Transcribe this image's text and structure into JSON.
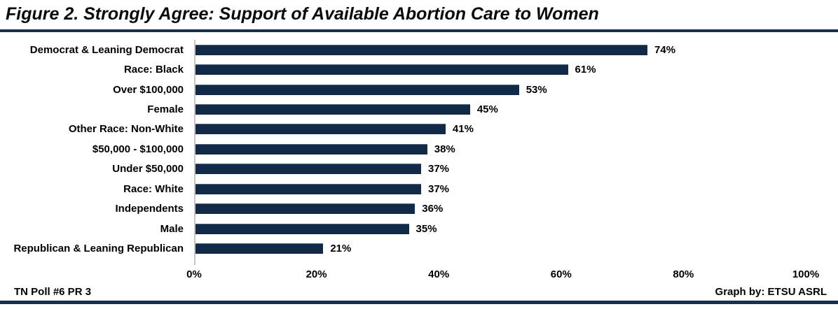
{
  "title": "Figure 2. Strongly Agree: Support of Available Abortion Care to Women",
  "footer": {
    "left": "TN Poll #6 PR 3",
    "right": "Graph by: ETSU ASRL"
  },
  "colors": {
    "bar": "#112a47",
    "rule": "#16304f",
    "axis_line": "#c6c6c6",
    "text": "#000000"
  },
  "chart_data": {
    "type": "bar",
    "orientation": "horizontal",
    "title": "Figure 2. Strongly Agree: Support of Available Abortion Care to Women",
    "categories": [
      "Democrat & Leaning Democrat",
      "Race: Black",
      "Over $100,000",
      "Female",
      "Other Race: Non-White",
      "$50,000 - $100,000",
      "Under $50,000",
      "Race: White",
      "Independents",
      "Male",
      "Republican & Leaning Republican"
    ],
    "values": [
      74,
      61,
      53,
      45,
      41,
      38,
      37,
      37,
      36,
      35,
      21
    ],
    "value_labels": [
      "74%",
      "61%",
      "53%",
      "45%",
      "41%",
      "38%",
      "37%",
      "37%",
      "36%",
      "35%",
      "21%"
    ],
    "x_ticks": [
      "0%",
      "20%",
      "40%",
      "60%",
      "80%",
      "100%"
    ],
    "x_tick_values": [
      0,
      20,
      40,
      60,
      80,
      100
    ],
    "xlim": [
      0,
      100
    ],
    "xlabel": "",
    "ylabel": "",
    "grid": false,
    "legend": false
  }
}
